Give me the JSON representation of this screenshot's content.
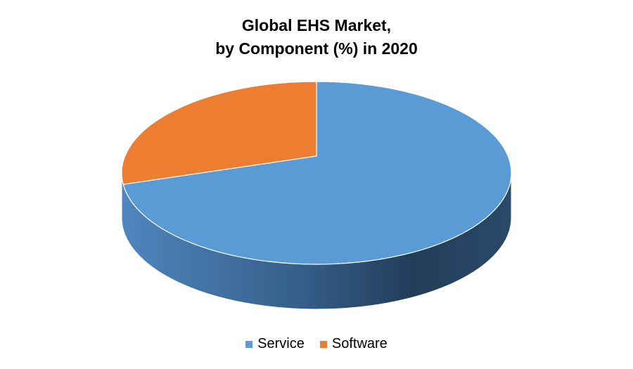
{
  "chart_data": {
    "type": "pie",
    "title_line1": "Global EHS Market,",
    "title_line2": "by Component (%) in 2020",
    "categories": [
      "Service",
      "Software"
    ],
    "values": [
      73,
      27
    ],
    "colors": [
      "#5b9bd5",
      "#ed7d31"
    ],
    "style": "3d",
    "legend": "bottom"
  }
}
